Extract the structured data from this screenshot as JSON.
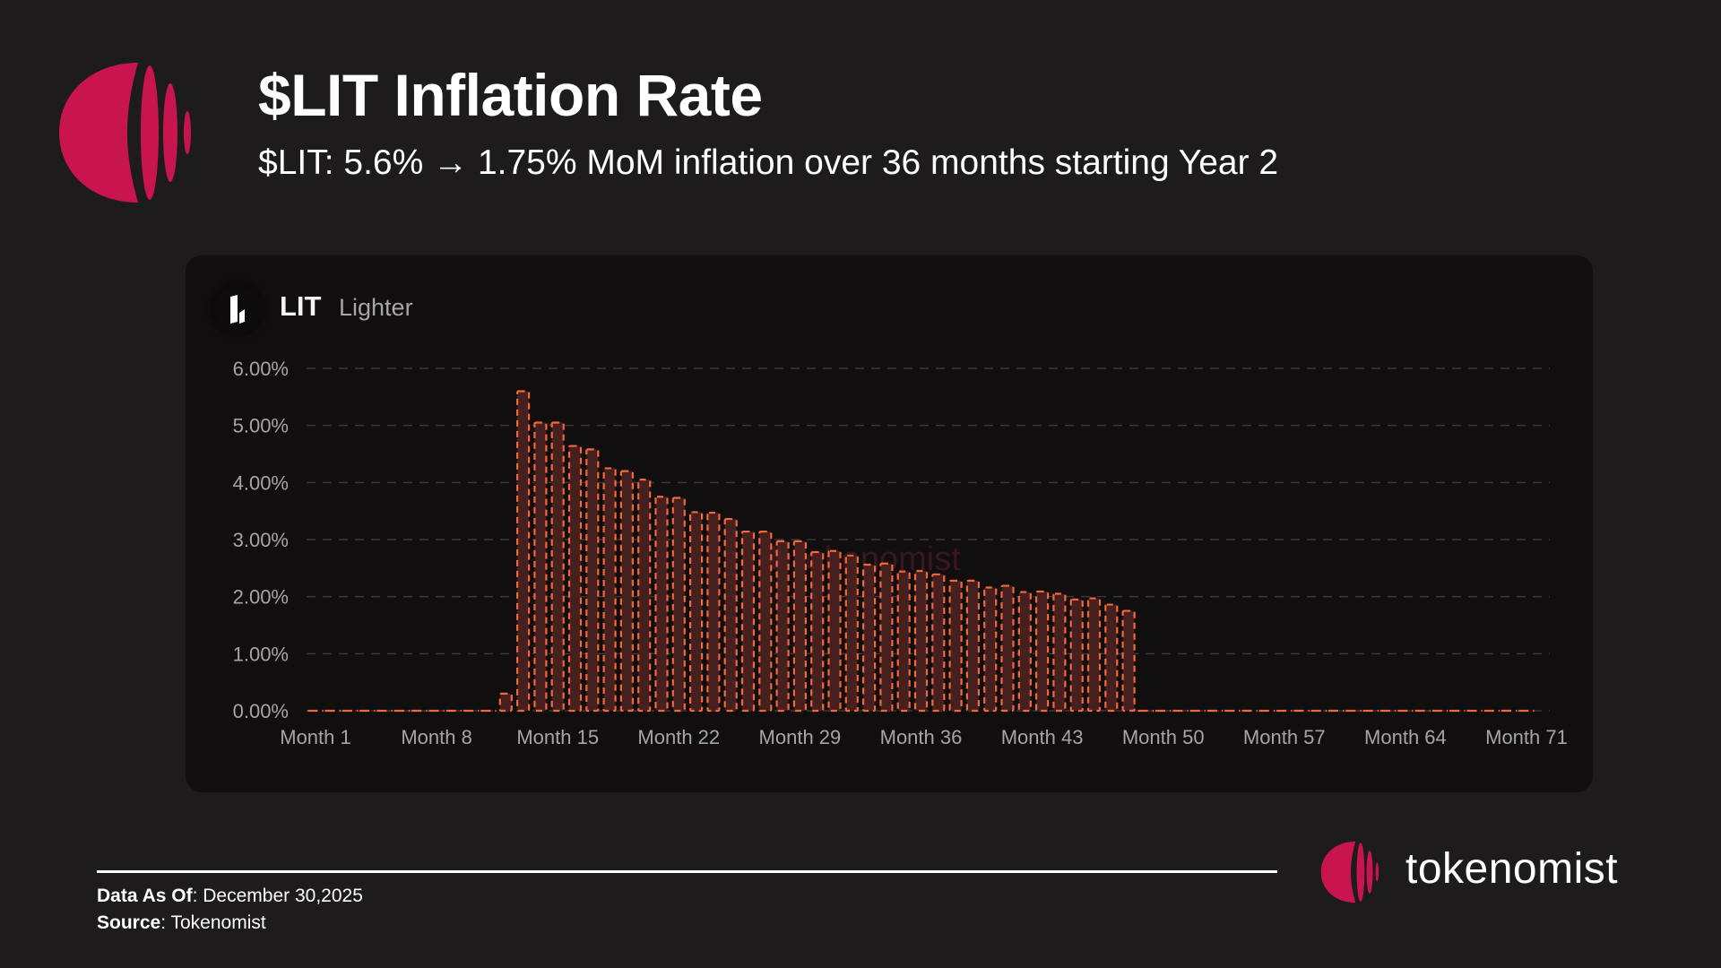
{
  "header": {
    "title": "$LIT Inflation Rate",
    "subtitle": "$LIT: 5.6% → 1.75% MoM inflation over 36 months starting Year 2",
    "brand_color": "#c8144f"
  },
  "card": {
    "token_symbol": "LIT",
    "token_name": "Lighter",
    "token_icon": "lighter-logo-icon",
    "watermark": "tokenomist"
  },
  "footer": {
    "data_as_of_label": "Data As Of",
    "data_as_of_value": ": December 30,2025",
    "source_label": "Source",
    "source_value": ": Tokenomist",
    "brand": "tokenomist"
  },
  "chart_data": {
    "type": "bar",
    "title": "",
    "xlabel": "",
    "ylabel": "",
    "ylim": [
      0,
      6
    ],
    "y_tick_values": [
      0,
      1,
      2,
      3,
      4,
      5,
      6
    ],
    "y_tick_labels": [
      "0.00%",
      "1.00%",
      "2.00%",
      "3.00%",
      "4.00%",
      "5.00%",
      "6.00%"
    ],
    "x_tick_labels": [
      "Month 1",
      "Month 8",
      "Month 15",
      "Month 22",
      "Month 29",
      "Month 36",
      "Month 43",
      "Month 50",
      "Month 57",
      "Month 64",
      "Month 71"
    ],
    "x_tick_months": [
      1,
      8,
      15,
      22,
      29,
      36,
      43,
      50,
      57,
      64,
      71
    ],
    "grid": true,
    "legend": "none",
    "bar_stroke_color": "#f2673b",
    "bar_fill_color": "#45201f",
    "grid_color": "#3a3738",
    "months": [
      1,
      2,
      3,
      4,
      5,
      6,
      7,
      8,
      9,
      10,
      11,
      12,
      13,
      14,
      15,
      16,
      17,
      18,
      19,
      20,
      21,
      22,
      23,
      24,
      25,
      26,
      27,
      28,
      29,
      30,
      31,
      32,
      33,
      34,
      35,
      36,
      37,
      38,
      39,
      40,
      41,
      42,
      43,
      44,
      45,
      46,
      47,
      48,
      49,
      50,
      51,
      52,
      53,
      54,
      55,
      56,
      57,
      58,
      59,
      60,
      61,
      62,
      63,
      64,
      65,
      66,
      67,
      68,
      69,
      70,
      71
    ],
    "values": [
      0,
      0,
      0,
      0,
      0,
      0,
      0,
      0,
      0,
      0,
      0,
      0.3,
      5.6,
      5.05,
      5.05,
      4.64,
      4.58,
      4.25,
      4.2,
      4.05,
      3.75,
      3.73,
      3.48,
      3.47,
      3.36,
      3.14,
      3.14,
      2.97,
      2.97,
      2.78,
      2.8,
      2.72,
      2.56,
      2.58,
      2.44,
      2.45,
      2.39,
      2.28,
      2.28,
      2.16,
      2.19,
      2.08,
      2.09,
      2.05,
      1.95,
      1.97,
      1.86,
      1.75,
      0,
      0,
      0,
      0,
      0,
      0,
      0,
      0,
      0,
      0,
      0,
      0,
      0,
      0,
      0,
      0,
      0,
      0,
      0,
      0,
      0,
      0,
      0
    ],
    "unit": "%"
  }
}
